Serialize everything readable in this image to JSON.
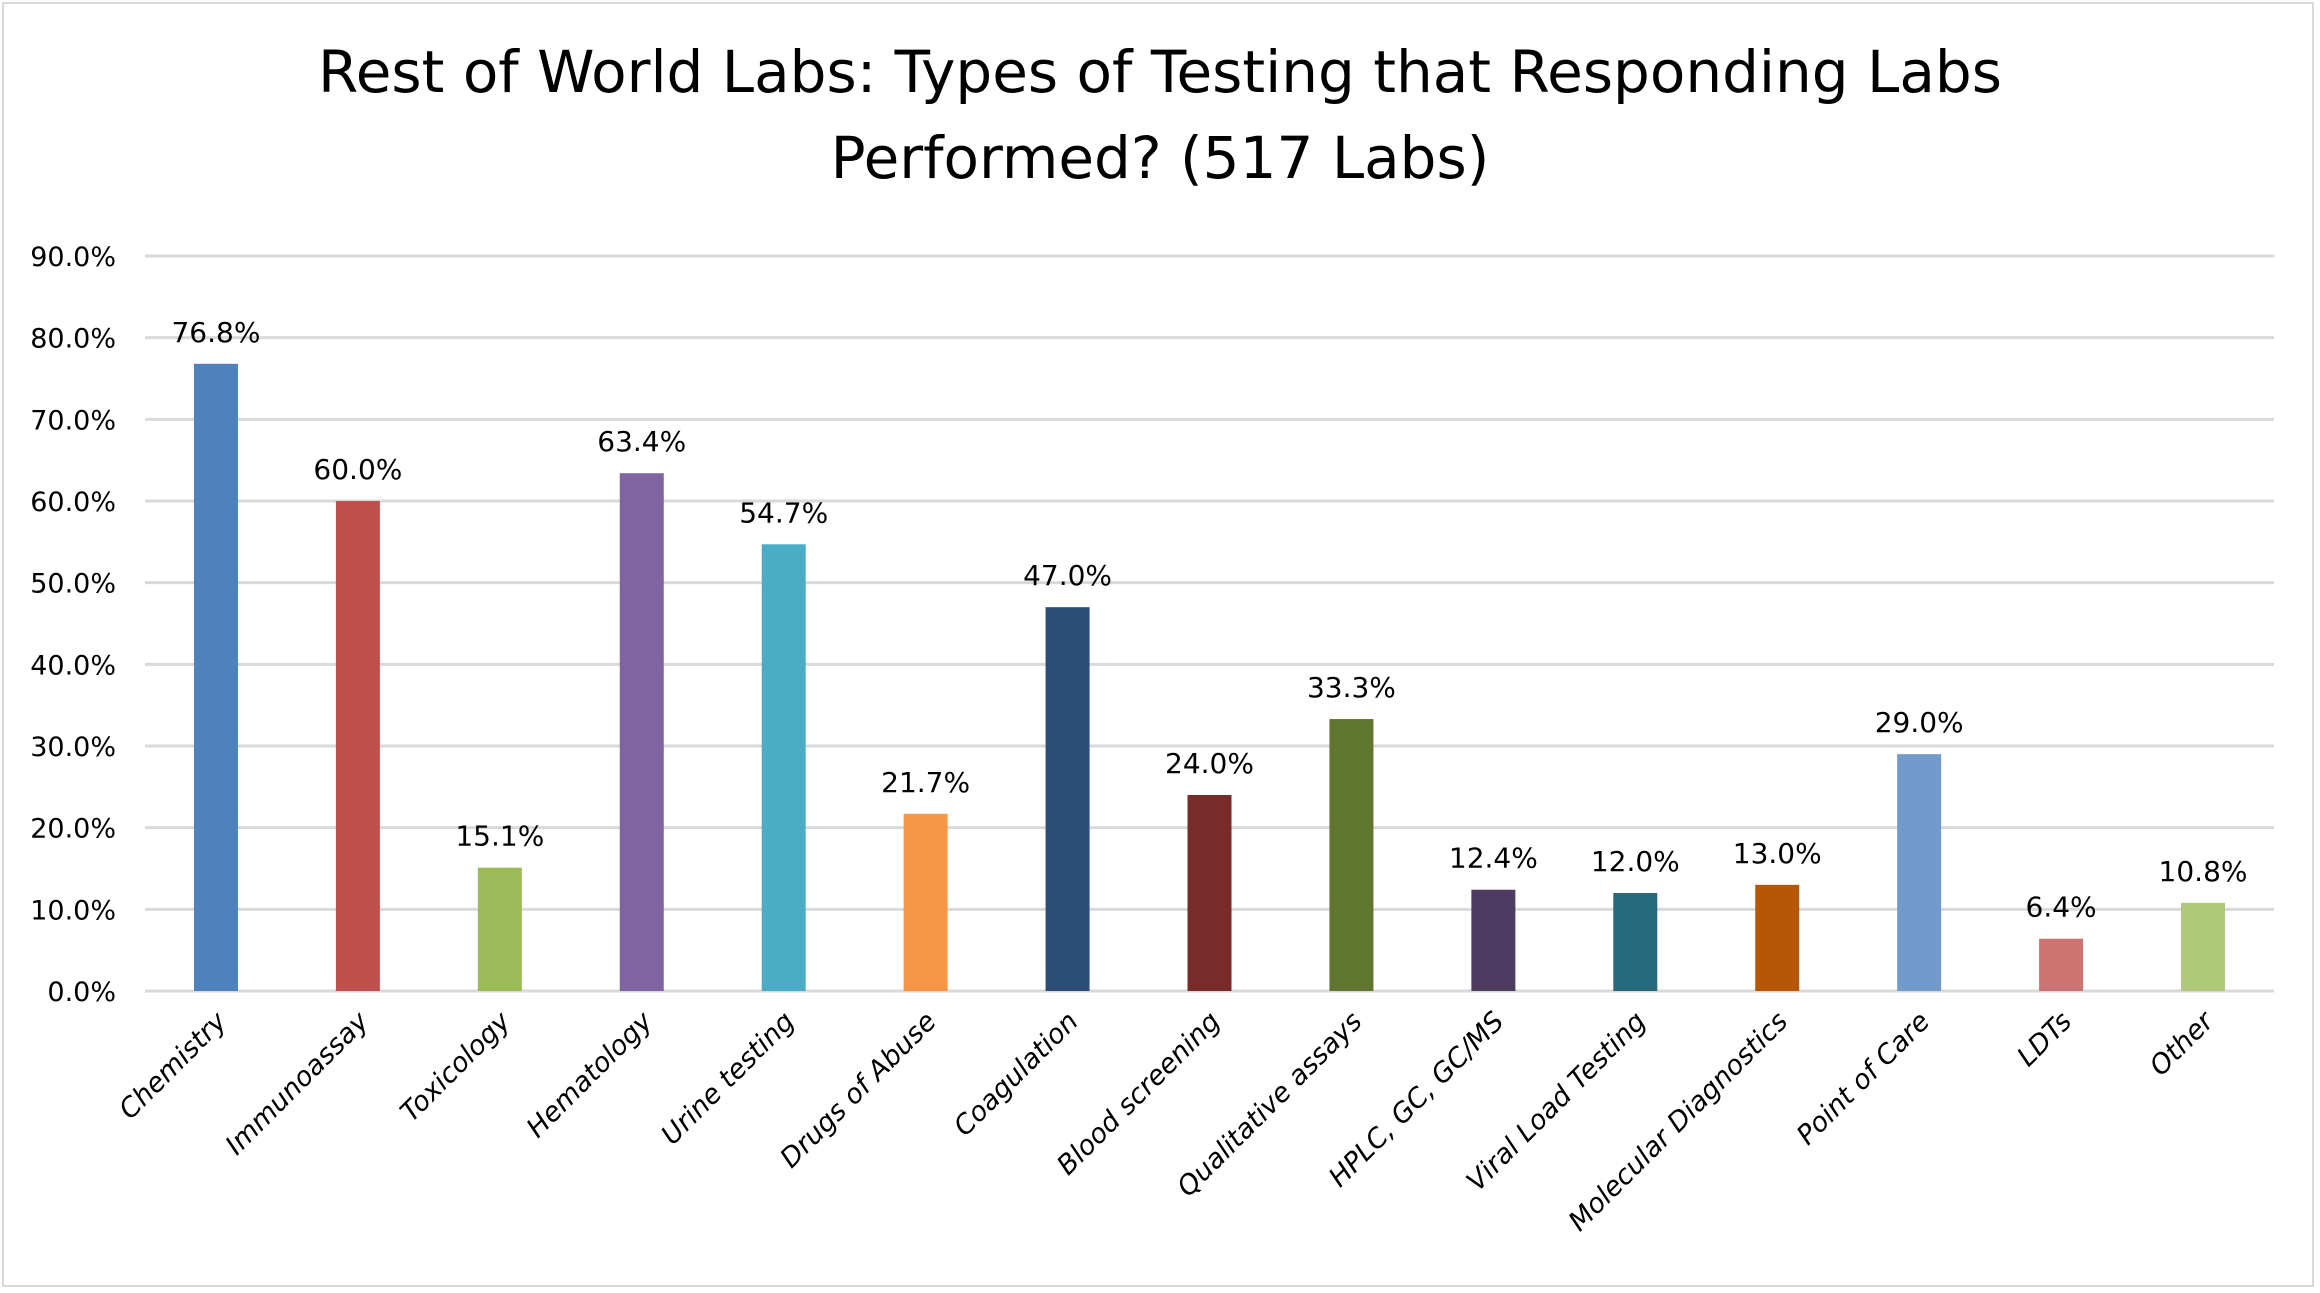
{
  "chart_data": {
    "type": "bar",
    "title_lines": [
      "Rest of World Labs: Types of Testing that Responding Labs",
      "Performed? (517 Labs)"
    ],
    "xlabel": "",
    "ylabel": "",
    "ylim": [
      0,
      90
    ],
    "yticks": [
      0,
      10,
      20,
      30,
      40,
      50,
      60,
      70,
      80,
      90
    ],
    "ytick_labels": [
      "0.0%",
      "10.0%",
      "20.0%",
      "30.0%",
      "40.0%",
      "50.0%",
      "60.0%",
      "70.0%",
      "80.0%",
      "90.0%"
    ],
    "grid": true,
    "legend": "none",
    "categories": [
      "Chemistry",
      "Immunoassay",
      "Toxicology",
      "Hematology",
      "Urine testing",
      "Drugs of Abuse",
      "Coagulation",
      "Blood screening",
      "Qualitative assays",
      "HPLC, GC, GC/MS",
      "Viral Load Testing",
      "Molecular Diagnostics",
      "Point of Care",
      "LDTs",
      "Other"
    ],
    "values": [
      76.8,
      60.0,
      15.1,
      63.4,
      54.7,
      21.7,
      47.0,
      24.0,
      33.3,
      12.4,
      12.0,
      13.0,
      29.0,
      6.4,
      10.8
    ],
    "data_labels": [
      "76.8%",
      "60.0%",
      "15.1%",
      "63.4%",
      "54.7%",
      "21.7%",
      "47.0%",
      "24.0%",
      "33.3%",
      "12.4%",
      "12.0%",
      "13.0%",
      "29.0%",
      "6.4%",
      "10.8%"
    ],
    "colors": [
      "#4f81bd",
      "#c0504d",
      "#9bbb59",
      "#8064a2",
      "#4bacc6",
      "#f79646",
      "#2c4d75",
      "#772c2a",
      "#5f7530",
      "#4d3b62",
      "#276a7c",
      "#b65708",
      "#729aca",
      "#cd7371",
      "#afc97a"
    ],
    "grid_color": "#d9d9d9"
  }
}
